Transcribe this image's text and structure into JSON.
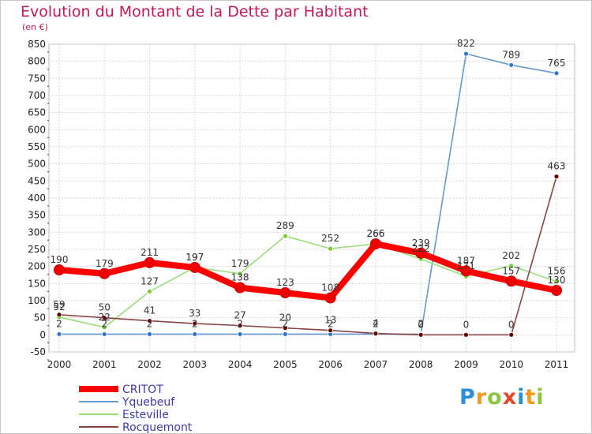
{
  "chart_data": {
    "type": "line",
    "title": "Evolution du Montant de la Dette par Habitant",
    "unit_label": "(en €)",
    "xlabel": "",
    "ylabel": "",
    "ylim": [
      -50,
      850
    ],
    "yticks": [
      "-50",
      "0",
      "50",
      "100",
      "150",
      "200",
      "250",
      "300",
      "350",
      "400",
      "450",
      "500",
      "550",
      "600",
      "650",
      "700",
      "750",
      "800",
      "850"
    ],
    "categories": [
      "2000",
      "2001",
      "2002",
      "2003",
      "2004",
      "2005",
      "2006",
      "2007",
      "2008",
      "2009",
      "2010",
      "2011"
    ],
    "grid": true,
    "legend_position": "bottom-left",
    "series": [
      {
        "name": "CRITOT",
        "color": "#ff0000",
        "marker": "#ee0000",
        "width": "thick",
        "values": [
          190,
          179,
          211,
          197,
          138,
          123,
          108,
          266,
          239,
          187,
          157,
          130
        ],
        "labels": [
          "190",
          "179",
          "211",
          "197",
          "138",
          "123",
          "108",
          "266",
          "239",
          "187",
          "157",
          "130"
        ]
      },
      {
        "name": "Yquebeuf",
        "color": "#6699cc",
        "marker": "#3377cc",
        "width": "thin",
        "values": [
          2,
          2,
          2,
          2,
          2,
          2,
          2,
          2,
          2,
          822,
          789,
          765
        ],
        "labels": [
          "2",
          "2",
          "2",
          "2",
          "2",
          "2",
          "2",
          "2",
          "2",
          "822",
          "789",
          "765"
        ]
      },
      {
        "name": "Esteville",
        "color": "#99dd77",
        "marker": "#77cc33",
        "width": "thin",
        "values": [
          52,
          22,
          127,
          197,
          179,
          289,
          252,
          266,
          222,
          171,
          202,
          156
        ],
        "labels": [
          "52",
          "22",
          "127",
          "197",
          "179",
          "289",
          "252",
          "266",
          "222",
          "171",
          "202",
          "156"
        ]
      },
      {
        "name": "Rocquemont",
        "color": "#884444",
        "marker": "#660000",
        "width": "thin",
        "values": [
          59,
          50,
          41,
          33,
          27,
          20,
          13,
          4,
          0,
          0,
          0,
          463
        ],
        "labels": [
          "59",
          "50",
          "41",
          "33",
          "27",
          "20",
          "13",
          "4",
          "0",
          "0",
          "0",
          "463"
        ]
      }
    ]
  },
  "legend": {
    "items": [
      {
        "label": "CRITOT"
      },
      {
        "label": "Yquebeuf"
      },
      {
        "label": "Esteville"
      },
      {
        "label": "Rocquemont"
      }
    ]
  },
  "logo": {
    "letters": [
      {
        "ch": "P",
        "color": "#2a8fd8"
      },
      {
        "ch": "r",
        "color": "#f29a1f"
      },
      {
        "ch": "o",
        "color": "#8cc63f"
      },
      {
        "ch": "x",
        "color": "#e8452c"
      },
      {
        "ch": "i",
        "color": "#2a8fd8"
      },
      {
        "ch": "t",
        "color": "#f29a1f"
      },
      {
        "ch": "i",
        "color": "#8cc63f"
      }
    ]
  }
}
